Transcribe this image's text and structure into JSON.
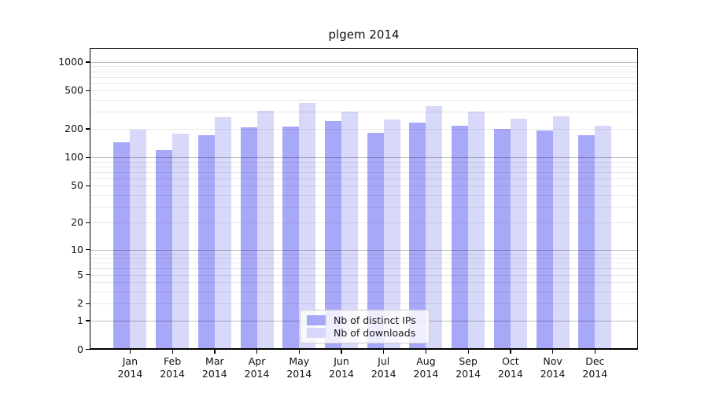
{
  "chart_data": {
    "type": "bar",
    "title": "plgem 2014",
    "categories": [
      "Jan 2014",
      "Feb 2014",
      "Mar 2014",
      "Apr 2014",
      "May 2014",
      "Jun 2014",
      "Jul 2014",
      "Aug 2014",
      "Sep 2014",
      "Oct 2014",
      "Nov 2014",
      "Dec 2014"
    ],
    "series": [
      {
        "name": "Nb of distinct IPs",
        "color": "#a8a8f8",
        "values": [
          145,
          120,
          170,
          205,
          210,
          240,
          180,
          230,
          215,
          200,
          190,
          170
        ]
      },
      {
        "name": "Nb of downloads",
        "color": "#d8d8fa",
        "values": [
          195,
          178,
          265,
          310,
          370,
          300,
          250,
          345,
          300,
          255,
          270,
          215
        ]
      }
    ],
    "y_ticks": [
      0,
      1,
      2,
      5,
      10,
      20,
      50,
      100,
      200,
      500,
      1000
    ],
    "y_scale": "log10(1+x)",
    "ylim": [
      0,
      1400
    ],
    "xlabel": "",
    "ylabel": "",
    "grid": "horizontal; faint minors at 2-9 per decade, darker lines at decades",
    "legend_position": "lower center, inside plot",
    "bar_grouping": "paired per month: distinct IPs (left, dark), downloads (right, light)"
  }
}
